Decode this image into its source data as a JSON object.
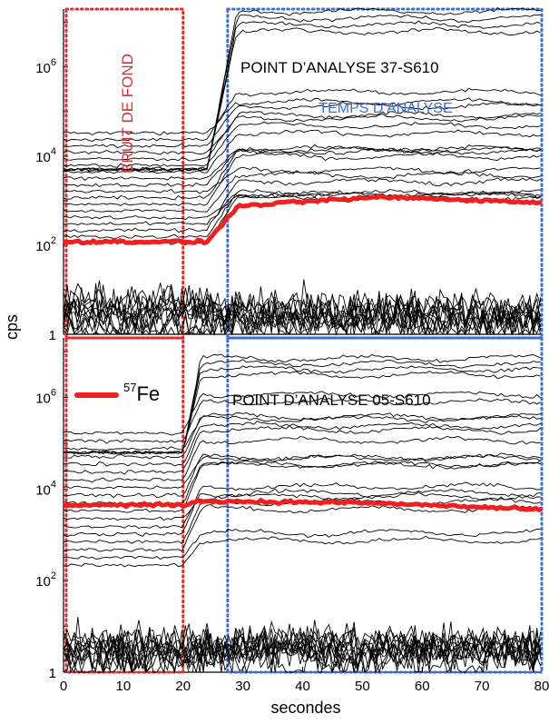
{
  "chart_data": [
    {
      "type": "line",
      "panel": "top",
      "title": "POINT D’ANALYSE 37-S610",
      "ylabel": "cps",
      "yscale": "log",
      "ylim": [
        1,
        20000000
      ],
      "xlim": [
        0,
        80
      ],
      "y_ticks": [
        {
          "value": 1,
          "base": "1",
          "exp": ""
        },
        {
          "value": 100,
          "base": "10",
          "exp": "2"
        },
        {
          "value": 10000,
          "base": "10",
          "exp": "4"
        },
        {
          "value": 1000000,
          "base": "10",
          "exp": "6"
        }
      ],
      "regions": [
        {
          "label": "BRUIT DE FOND",
          "x_range": [
            0,
            20
          ],
          "color": "#e8282a"
        },
        {
          "label": "TEMPS D’ANALYSE",
          "x_range": [
            27,
            80
          ],
          "color": "#3a6ee0"
        }
      ],
      "signal_start": 24,
      "signal_end": 27,
      "highlight_background_level": 120,
      "highlight_plateau_levels": [
        700,
        1200,
        900
      ],
      "highlight_name": "57Fe"
    },
    {
      "type": "line",
      "panel": "bottom",
      "title": "POINT D’ANALYSE 05-S610",
      "ylabel": "cps",
      "yscale": "log",
      "ylim": [
        1,
        20000000
      ],
      "xlim": [
        0,
        80
      ],
      "xlabel": "secondes",
      "x_ticks": [
        0,
        10,
        20,
        30,
        40,
        50,
        60,
        70,
        80
      ],
      "y_ticks": [
        {
          "value": 1,
          "base": "1",
          "exp": ""
        },
        {
          "value": 100,
          "base": "10",
          "exp": "2"
        },
        {
          "value": 10000,
          "base": "10",
          "exp": "4"
        },
        {
          "value": 1000000,
          "base": "10",
          "exp": "6"
        }
      ],
      "regions": [
        {
          "label": "",
          "x_range": [
            0,
            20
          ],
          "color": "#e8282a"
        },
        {
          "label": "",
          "x_range": [
            27,
            80
          ],
          "color": "#3a6ee0"
        }
      ],
      "signal_start": 20,
      "signal_end": 21,
      "highlight_background_level": 4500,
      "highlight_plateau_levels": [
        5500,
        5000,
        3500
      ],
      "highlight_name": "57Fe"
    }
  ],
  "legend": {
    "mass": "57",
    "element": "Fe",
    "color": "#f02020"
  }
}
